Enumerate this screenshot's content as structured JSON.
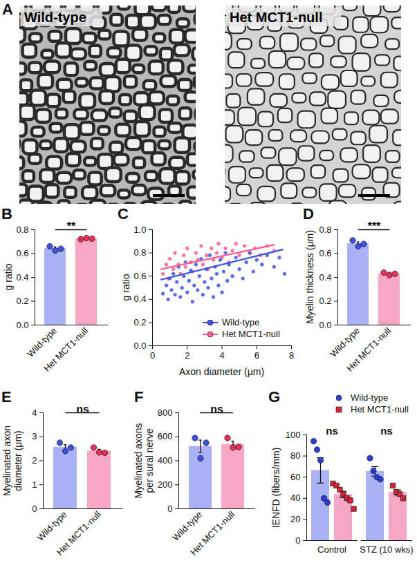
{
  "chart_data": [
    {
      "type": "image",
      "title": "A",
      "images": [
        {
          "label": "Wild-type"
        },
        {
          "label": "Het MCT1-null"
        }
      ]
    },
    {
      "type": "bar",
      "title": "B",
      "categories": [
        "Wild-type",
        "Het MCT1-null"
      ],
      "values": [
        0.643,
        0.722
      ],
      "errors": [
        0.012,
        0.003
      ],
      "points": [
        [
          0.66,
          0.625,
          0.64
        ],
        [
          0.72,
          0.73,
          0.725
        ]
      ],
      "colors": [
        "#a9b2f5",
        "#f7a6c5"
      ],
      "point_colors": [
        "#3d52e3",
        "#e8305a"
      ],
      "ylabel": "g ratio",
      "ylim": [
        0,
        0.8
      ],
      "yticks": [
        {
          "value": 0,
          "label": "0.0"
        },
        0.2,
        0.4,
        0.6,
        0.8
      ],
      "significance": "**"
    },
    {
      "type": "scatter",
      "title": "C",
      "xlabel": "Axon diameter (μm)",
      "ylabel": "g ratio",
      "xlim": [
        0,
        8
      ],
      "xticks": [
        0,
        2,
        4,
        6,
        8
      ],
      "ylim": [
        0,
        1
      ],
      "yticks": [
        {
          "value": 0,
          "label": "0.0"
        },
        0.2,
        0.4,
        0.6,
        0.8,
        {
          "value": 1,
          "label": "1.0"
        }
      ],
      "legend": "lower right",
      "series": [
        {
          "name": "Wild-type",
          "color": "#3d52e3",
          "x": [
            0.6,
            0.8,
            0.9,
            1.0,
            1.1,
            1.2,
            1.3,
            1.4,
            1.5,
            1.6,
            1.7,
            1.8,
            1.9,
            2.0,
            2.1,
            2.2,
            2.3,
            2.4,
            2.5,
            2.6,
            2.7,
            2.8,
            2.9,
            3.0,
            3.1,
            3.2,
            3.3,
            3.4,
            3.5,
            3.6,
            3.7,
            3.8,
            3.9,
            4.0,
            4.1,
            4.2,
            4.3,
            4.4,
            4.6,
            4.8,
            5.0,
            5.2,
            5.4,
            5.6,
            5.8,
            6.0,
            6.3,
            6.6,
            7.0,
            7.3,
            7.6
          ],
          "values": [
            0.45,
            0.52,
            0.4,
            0.58,
            0.48,
            0.62,
            0.44,
            0.55,
            0.68,
            0.42,
            0.5,
            0.6,
            0.72,
            0.46,
            0.56,
            0.65,
            0.38,
            0.52,
            0.7,
            0.48,
            0.6,
            0.75,
            0.44,
            0.55,
            0.66,
            0.5,
            0.78,
            0.58,
            0.42,
            0.68,
            0.62,
            0.52,
            0.74,
            0.46,
            0.64,
            0.8,
            0.56,
            0.7,
            0.6,
            0.76,
            0.66,
            0.58,
            0.72,
            0.8,
            0.64,
            0.74,
            0.7,
            0.78,
            0.68,
            0.76,
            0.62
          ],
          "fit": {
            "x": [
              0.5,
              7.5
            ],
            "values": [
              0.57,
              0.83
            ]
          }
        },
        {
          "name": "Het MCT1-null",
          "color": "#ff5c8d",
          "x": [
            0.6,
            0.8,
            0.9,
            1.0,
            1.2,
            1.3,
            1.5,
            1.6,
            1.8,
            1.9,
            2.0,
            2.2,
            2.3,
            2.5,
            2.6,
            2.8,
            2.9,
            3.1,
            3.2,
            3.4,
            3.5,
            3.7,
            3.8,
            4.0,
            4.2,
            4.4,
            4.6,
            4.8,
            5.0,
            5.3,
            5.6,
            5.9,
            6.2,
            6.6,
            7.0
          ],
          "values": [
            0.62,
            0.7,
            0.58,
            0.75,
            0.66,
            0.8,
            0.7,
            0.62,
            0.78,
            0.68,
            0.84,
            0.72,
            0.64,
            0.8,
            0.74,
            0.86,
            0.7,
            0.78,
            0.66,
            0.84,
            0.74,
            0.8,
            0.88,
            0.76,
            0.84,
            0.72,
            0.82,
            0.88,
            0.78,
            0.86,
            0.8,
            0.84,
            0.78,
            0.86,
            0.82
          ],
          "fit": {
            "x": [
              0.5,
              7.0
            ],
            "values": [
              0.66,
              0.87
            ]
          }
        }
      ]
    },
    {
      "type": "bar",
      "title": "D",
      "categories": [
        "Wild-type",
        "Het MCT1-null"
      ],
      "values": [
        0.683,
        0.43
      ],
      "errors": [
        0.015,
        0.006
      ],
      "points": [
        [
          0.71,
          0.66,
          0.68
        ],
        [
          0.44,
          0.42,
          0.43
        ]
      ],
      "colors": [
        "#a9b2f5",
        "#f7a6c5"
      ],
      "point_colors": [
        "#3d52e3",
        "#e8305a"
      ],
      "ylabel": "Myelin thickness (μm)",
      "ylim": [
        0,
        0.8
      ],
      "yticks": [
        {
          "value": 0,
          "label": "0.0"
        },
        0.2,
        0.4,
        0.6,
        0.8
      ],
      "significance": "***"
    },
    {
      "type": "bar",
      "title": "E",
      "categories": [
        "Wild-type",
        "Het MCT1-null"
      ],
      "values": [
        2.57,
        2.41
      ],
      "errors": [
        0.1,
        0.07
      ],
      "points": [
        [
          2.75,
          2.4,
          2.55
        ],
        [
          2.55,
          2.35,
          2.33
        ]
      ],
      "colors": [
        "#a9b2f5",
        "#f7a6c5"
      ],
      "point_colors": [
        "#3d52e3",
        "#e8305a"
      ],
      "ylabel": "Myelinated axon\ndiameter (μm)",
      "ylim": [
        0,
        4
      ],
      "yticks": [
        0,
        1,
        2,
        3,
        4
      ],
      "significance": "ns"
    },
    {
      "type": "bar",
      "title": "F",
      "categories": [
        "Wild-type",
        "Het MCT1-null"
      ],
      "values": [
        520,
        538
      ],
      "errors": [
        52,
        26
      ],
      "points": [
        [
          590,
          420,
          550
        ],
        [
          590,
          510,
          515
        ]
      ],
      "colors": [
        "#a9b2f5",
        "#f7a6c5"
      ],
      "point_colors": [
        "#3d52e3",
        "#e8305a"
      ],
      "ylabel": "Myelinated axons\nper sural nerve",
      "ylim": [
        0,
        800
      ],
      "yticks": [
        0,
        200,
        400,
        600,
        800
      ],
      "significance": "ns"
    },
    {
      "type": "bar",
      "title": "G",
      "categories": [
        "Control",
        "STZ (10 wks)"
      ],
      "ylabel": "IENFD (fibers/mm)",
      "ylim": [
        0,
        100
      ],
      "yticks": [
        0,
        20,
        40,
        60,
        80,
        100
      ],
      "legend": "upper right",
      "significance": [
        "ns",
        "ns"
      ],
      "series": [
        {
          "name": "Wild-type",
          "color": "#a9b2f5",
          "point_color": "#2a3ed4",
          "marker": "circle",
          "values": [
            66.4,
            65.5
          ],
          "errors": [
            12,
            4.5
          ],
          "points": [
            [
              94,
              86,
              76,
              40,
              36
            ],
            [
              78,
              66,
              60,
              58
            ]
          ]
        },
        {
          "name": "Het MCT1-null",
          "color": "#f7a6c5",
          "point_color": "#d6243a",
          "marker": "square",
          "values": [
            43.7,
            45.5
          ],
          "errors": [
            3,
            2.5
          ],
          "points": [
            [
              54,
              52,
              48,
              44,
              40,
              38,
              30
            ],
            [
              52,
              46,
              44,
              40
            ]
          ]
        }
      ]
    }
  ]
}
